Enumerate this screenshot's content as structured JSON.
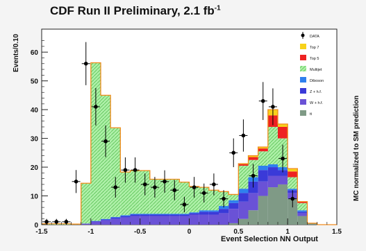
{
  "chart_data": {
    "type": "bar",
    "subtype": "stacked-histogram-with-data-points",
    "title": "CDF Run II Preliminary, 2.1 fb",
    "title_superscript": "-1",
    "xlabel": "Event Selection NN Output",
    "ylabel": "Events/0.10",
    "right_label": "MC normalized to SM prediction",
    "xlim": [
      -1.5,
      1.5
    ],
    "ylim": [
      0,
      68
    ],
    "x_ticks": [
      -1.5,
      -1,
      -0.5,
      0,
      0.5,
      1,
      1.5
    ],
    "x_tick_labels": [
      "-1.5",
      "-1",
      "-0.5",
      "0",
      "0.5",
      "1",
      "1.5"
    ],
    "y_ticks": [
      0,
      10,
      20,
      30,
      40,
      50,
      60
    ],
    "y_tick_labels": [
      "0",
      "10",
      "20",
      "30",
      "40",
      "50",
      "60"
    ],
    "bin_edges": [
      -1.5,
      -1.4,
      -1.3,
      -1.2,
      -1.1,
      -1.0,
      -0.9,
      -0.8,
      -0.7,
      -0.6,
      -0.5,
      -0.4,
      -0.3,
      -0.2,
      -0.1,
      0.0,
      0.1,
      0.2,
      0.3,
      0.4,
      0.5,
      0.6,
      0.7,
      0.8,
      0.9,
      1.0,
      1.1,
      1.2,
      1.3,
      1.4,
      1.5
    ],
    "legend_position": "top-right",
    "legend": [
      {
        "key": "data",
        "label": "DATA"
      },
      {
        "key": "top7",
        "label": "Top 7"
      },
      {
        "key": "top5",
        "label": "Top 5"
      },
      {
        "key": "multijet",
        "label": "Multijet"
      },
      {
        "key": "diboson",
        "label": "Diboson"
      },
      {
        "key": "zhf",
        "label": "Z + h.f."
      },
      {
        "key": "whf",
        "label": "W + h.f."
      },
      {
        "key": "tt",
        "label": "tt"
      }
    ],
    "series": [
      {
        "key": "tt",
        "color": "#7f9a86",
        "values": [
          0,
          0,
          0,
          0,
          0,
          0,
          0,
          0,
          0,
          0,
          0,
          0,
          0,
          0,
          0,
          0,
          0,
          0,
          0,
          0.5,
          2,
          5,
          10,
          13,
          14,
          9,
          3,
          0.5,
          0,
          0
        ]
      },
      {
        "key": "whf",
        "color": "#6a52d6",
        "values": [
          0,
          0,
          0,
          0,
          0.3,
          1,
          1.5,
          2,
          2.5,
          3,
          3,
          3,
          3,
          3,
          3,
          3.5,
          3.5,
          3.5,
          4,
          5,
          6,
          6,
          5,
          4,
          3,
          2,
          1,
          0,
          0,
          0
        ]
      },
      {
        "key": "zhf",
        "color": "#3a3ad8",
        "values": [
          0,
          0,
          0,
          0,
          0.1,
          0.2,
          0.3,
          0.5,
          0.5,
          0.5,
          0.5,
          0.5,
          0.5,
          0.5,
          0.5,
          0.5,
          1,
          1,
          1.5,
          2,
          3,
          4,
          4,
          3,
          2,
          1,
          0.5,
          0,
          0,
          0
        ]
      },
      {
        "key": "diboson",
        "color": "#2f80ee",
        "values": [
          0,
          0,
          0,
          0,
          0,
          0.1,
          0.2,
          0.2,
          0.3,
          0.3,
          0.3,
          0.3,
          0.3,
          0.3,
          0.3,
          0.3,
          0.5,
          0.5,
          1,
          1,
          1.5,
          1.5,
          1.5,
          1,
          1,
          0.5,
          0.5,
          0,
          0,
          0
        ]
      },
      {
        "key": "multijet",
        "color": "#9ee89a",
        "values": [
          0.3,
          0.3,
          0.3,
          0.2,
          14,
          55,
          43,
          31,
          15,
          15,
          15,
          12,
          12,
          12,
          11,
          9,
          8,
          7,
          5,
          2,
          8,
          6,
          5,
          13,
          10,
          4,
          2.5,
          0,
          0,
          0
        ]
      },
      {
        "key": "top5",
        "color": "#ee2222",
        "values": [
          0,
          0,
          0,
          0,
          0,
          0,
          0,
          0,
          0,
          0,
          0,
          0,
          0,
          0,
          0,
          0,
          0,
          0,
          0,
          0,
          0.5,
          1,
          1,
          4,
          4,
          2,
          0.5,
          0,
          0,
          0
        ]
      },
      {
        "key": "top7",
        "color": "#f7d21a",
        "values": [
          0,
          0,
          0,
          0,
          0,
          0,
          0,
          0,
          0,
          0,
          0,
          0,
          0,
          0,
          0,
          0,
          0,
          0,
          0,
          0,
          0.2,
          0.5,
          0.5,
          2,
          1,
          1,
          0,
          0,
          0,
          0
        ]
      }
    ],
    "data_points": [
      {
        "x": -1.45,
        "y": 1,
        "err": 1
      },
      {
        "x": -1.35,
        "y": 1,
        "err": 1
      },
      {
        "x": -1.25,
        "y": 1,
        "err": 1
      },
      {
        "x": -1.15,
        "y": 15,
        "err": 4
      },
      {
        "x": -1.05,
        "y": 56,
        "err": 7.5
      },
      {
        "x": -0.95,
        "y": 41,
        "err": 6.5
      },
      {
        "x": -0.85,
        "y": 29,
        "err": 5.5
      },
      {
        "x": -0.75,
        "y": 13,
        "err": 3.6
      },
      {
        "x": -0.65,
        "y": 19,
        "err": 4.4
      },
      {
        "x": -0.55,
        "y": 19,
        "err": 4.4
      },
      {
        "x": -0.45,
        "y": 14,
        "err": 3.8
      },
      {
        "x": -0.35,
        "y": 13,
        "err": 3.6
      },
      {
        "x": -0.25,
        "y": 15,
        "err": 3.9
      },
      {
        "x": -0.15,
        "y": 12,
        "err": 3.5
      },
      {
        "x": -0.05,
        "y": 7,
        "err": 2.7
      },
      {
        "x": 0.05,
        "y": 13,
        "err": 3.6
      },
      {
        "x": 0.15,
        "y": 11,
        "err": 3.3
      },
      {
        "x": 0.25,
        "y": 14,
        "err": 3.8
      },
      {
        "x": 0.35,
        "y": 9,
        "err": 3
      },
      {
        "x": 0.45,
        "y": 25,
        "err": 5
      },
      {
        "x": 0.55,
        "y": 31,
        "err": 5.6
      },
      {
        "x": 0.65,
        "y": 17,
        "err": 4.1
      },
      {
        "x": 0.75,
        "y": 43,
        "err": 6.6
      },
      {
        "x": 0.85,
        "y": 41,
        "err": 6.4
      },
      {
        "x": 0.95,
        "y": 23,
        "err": 4.8
      },
      {
        "x": 1.05,
        "y": 9,
        "err": 3
      }
    ]
  }
}
